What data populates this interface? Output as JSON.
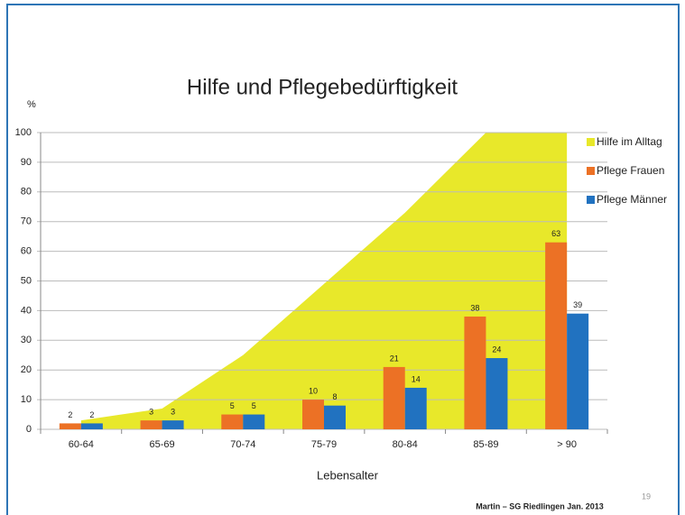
{
  "chart_data": {
    "type": "bar",
    "title": "Hilfe und Pflegebedürftigkeit",
    "y_unit": "%",
    "x_label": "Lebensalter",
    "footer": "Martin – SG Riedlingen  Jan. 2013",
    "page_number": "19",
    "categories": [
      "60-64",
      "65-69",
      "70-74",
      "75-79",
      "80-84",
      "85-89",
      "> 90"
    ],
    "series": [
      {
        "name": "Hilfe im Alltag",
        "color": "#e8e82a",
        "kind": "area",
        "values": [
          3,
          7,
          25,
          49,
          73,
          100,
          100
        ]
      },
      {
        "name": "Pflege Frauen",
        "color": "#ec7125",
        "kind": "bar",
        "values": [
          2,
          3,
          5,
          10,
          21,
          38,
          63
        ]
      },
      {
        "name": "Pflege Männer",
        "color": "#2172c0",
        "kind": "bar",
        "values": [
          2,
          3,
          5,
          8,
          14,
          24,
          39
        ]
      }
    ],
    "ylim": [
      0,
      100
    ],
    "yticks": [
      0,
      10,
      20,
      30,
      40,
      50,
      60,
      70,
      80,
      90,
      100
    ],
    "grid": true,
    "legend": "right"
  }
}
